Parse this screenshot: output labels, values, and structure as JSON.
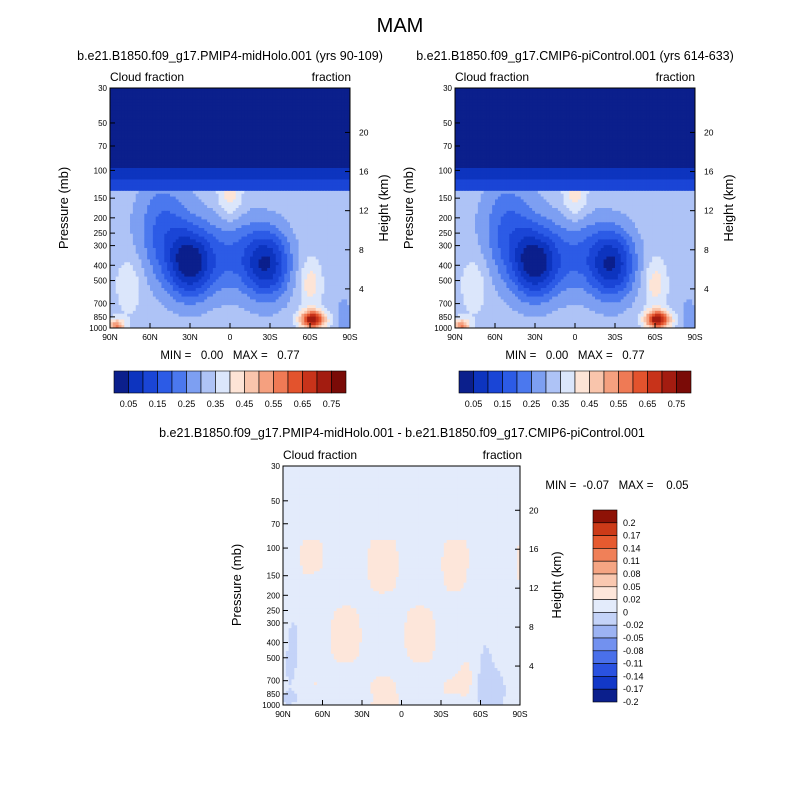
{
  "figure": {
    "title": "MAM"
  },
  "colors": {
    "abs_levels": [
      "#0b1f8c",
      "#0d34bf",
      "#1a45d6",
      "#2c5be6",
      "#4b78ee",
      "#7d9ff2",
      "#aec3f6",
      "#dbe6fb",
      "#fde4d6",
      "#f9c5ac",
      "#f5a07f",
      "#ef7a55",
      "#e3532d",
      "#c8331a",
      "#a31c10",
      "#7a0b07"
    ],
    "diff_levels": [
      "#0b1f8c",
      "#1238c8",
      "#2a52e0",
      "#4a70ea",
      "#7291ef",
      "#9cb3f3",
      "#c4d3f8",
      "#e3ebfb",
      "#fde6da",
      "#f9c8b0",
      "#f5a583",
      "#f08058",
      "#e65a2f",
      "#cc3a18",
      "#8e1206"
    ]
  },
  "chart_data": [
    {
      "type": "heatmap",
      "title": "b.e21.B1850.f09_g17.PMIP4-midHolo.001 (yrs 90-109)",
      "left_label": "Cloud fraction",
      "right_label": "fraction",
      "xlabel": "",
      "ylabel": "Pressure (mb)",
      "y2label": "Height (km)",
      "x_ticks": [
        "90N",
        "60N",
        "30N",
        "0",
        "30S",
        "60S",
        "90S"
      ],
      "y_ticks": [
        "30",
        "50",
        "70",
        "100",
        "150",
        "200",
        "250",
        "300",
        "400",
        "500",
        "700",
        "850",
        "1000"
      ],
      "y2_ticks": [
        "20",
        "16",
        "12",
        "8",
        "4"
      ],
      "min_max_text": "MIN =   0.00   MAX =   0.77",
      "colorbar_labels": [
        "0.05",
        "0.15",
        "0.25",
        "0.35",
        "0.45",
        "0.55",
        "0.65",
        "0.75"
      ],
      "min": 0.0,
      "max": 0.77
    },
    {
      "type": "heatmap",
      "title": "b.e21.B1850.f09_g17.CMIP6-piControl.001 (yrs 614-633)",
      "left_label": "Cloud fraction",
      "right_label": "fraction",
      "xlabel": "",
      "ylabel": "Pressure (mb)",
      "y2label": "Height (km)",
      "x_ticks": [
        "90N",
        "60N",
        "30N",
        "0",
        "30S",
        "60S",
        "90S"
      ],
      "y_ticks": [
        "30",
        "50",
        "70",
        "100",
        "150",
        "200",
        "250",
        "300",
        "400",
        "500",
        "700",
        "850",
        "1000"
      ],
      "y2_ticks": [
        "20",
        "16",
        "12",
        "8",
        "4"
      ],
      "min_max_text": "MIN =   0.00   MAX =   0.77",
      "colorbar_labels": [
        "0.05",
        "0.15",
        "0.25",
        "0.35",
        "0.45",
        "0.55",
        "0.65",
        "0.75"
      ],
      "min": 0.0,
      "max": 0.77
    },
    {
      "type": "heatmap",
      "title": "b.e21.B1850.f09_g17.PMIP4-midHolo.001 - b.e21.B1850.f09_g17.CMIP6-piControl.001",
      "left_label": "Cloud fraction",
      "right_label": "fraction",
      "xlabel": "",
      "ylabel": "Pressure (mb)",
      "y2label": "Height (km)",
      "x_ticks": [
        "90N",
        "60N",
        "30N",
        "0",
        "30S",
        "60S",
        "90S"
      ],
      "y_ticks": [
        "30",
        "50",
        "70",
        "100",
        "150",
        "200",
        "250",
        "300",
        "400",
        "500",
        "700",
        "850",
        "1000"
      ],
      "y2_ticks": [
        "20",
        "16",
        "12",
        "8",
        "4"
      ],
      "min_max_text": "MIN =  -0.07   MAX =    0.05",
      "colorbar_labels": [
        "0.2",
        "0.17",
        "0.14",
        "0.11",
        "0.08",
        "0.05",
        "0.02",
        "0",
        "-0.02",
        "-0.05",
        "-0.08",
        "-0.11",
        "-0.14",
        "-0.17",
        "-0.2"
      ],
      "min": -0.07,
      "max": 0.05
    }
  ]
}
